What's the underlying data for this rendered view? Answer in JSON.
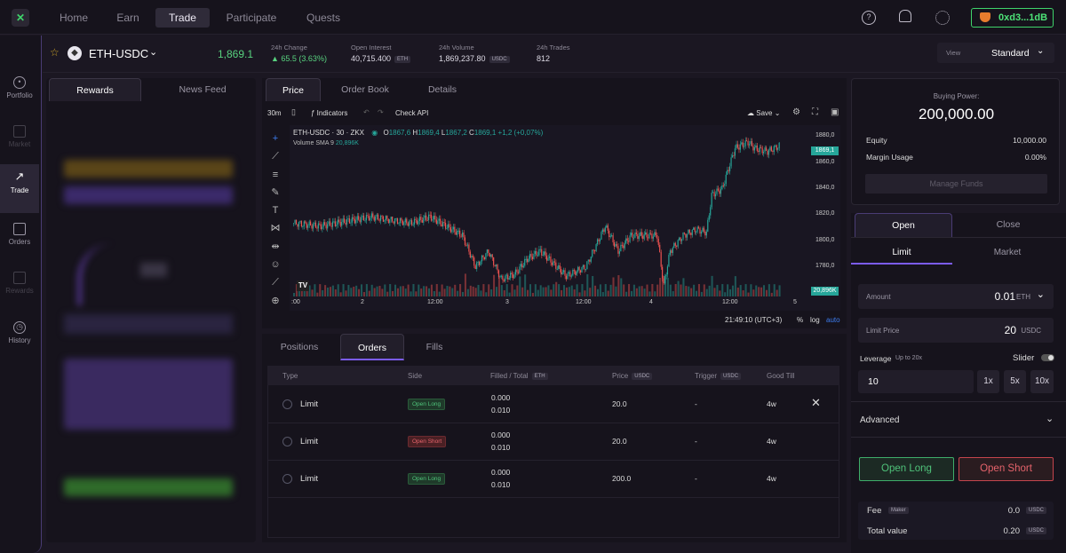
{
  "nav": {
    "logo": "✕",
    "items": [
      "Home",
      "Earn",
      "Trade",
      "Participate",
      "Quests"
    ],
    "active": "Trade",
    "wallet": "0xd3...1dB"
  },
  "sidebar": [
    {
      "label": "Portfolio",
      "icon": "person-icon"
    },
    {
      "label": "Market",
      "icon": "market-icon",
      "disabled": true
    },
    {
      "label": "Trade",
      "icon": "trend-icon",
      "active": true
    },
    {
      "label": "Orders",
      "icon": "orders-icon"
    },
    {
      "label": "Rewards",
      "icon": "gift-icon",
      "disabled": true
    },
    {
      "label": "History",
      "icon": "history-icon"
    }
  ],
  "market": {
    "pair": "ETH-USDC",
    "price": "1,869.1",
    "change_label": "24h Change",
    "change_value": "▲ 65.5 (3.63%)",
    "oi_label": "Open Interest",
    "oi_value": "40,715.400",
    "oi_unit": "ETH",
    "vol_label": "24h Volume",
    "vol_value": "1,869,237.80",
    "vol_unit": "USDC",
    "trades_label": "24h Trades",
    "trades_value": "812",
    "view_label": "View",
    "view_value": "Standard"
  },
  "left_tabs": [
    "Rewards",
    "News Feed"
  ],
  "center_tabs": [
    "Price",
    "Order Book",
    "Details"
  ],
  "chart_toolbar": {
    "interval": "30m",
    "indicators": "Indicators",
    "check_api": "Check API",
    "save": "Save"
  },
  "chart_legend": {
    "symbol": "ETH-USDC · 30 · ZKX",
    "o": "1867,6",
    "h": "1869,4",
    "l": "1867,2",
    "c": "1869,1",
    "chg": "+1,2 (+0,07%)",
    "volume": "Volume",
    "sma": "SMA 9",
    "vol_val": "20,896K"
  },
  "chart_data": {
    "type": "candlestick",
    "price_ticks": [
      "1880,0",
      "1860,0",
      "1840,0",
      "1820,0",
      "1800,0",
      "1780,0"
    ],
    "last_price": "1869,1",
    "last_volume": "20,896K",
    "time_ticks": [
      ":00",
      "2",
      "12:00",
      "3",
      "12:00",
      "4",
      "12:00",
      "5"
    ],
    "time": "21:49:10 (UTC+3)",
    "opts": [
      "%",
      "log",
      "auto"
    ],
    "ylim": [
      1772,
      1882
    ]
  },
  "bottom_tabs": [
    "Positions",
    "Orders",
    "Fills"
  ],
  "orders_header": {
    "type": "Type",
    "side": "Side",
    "filled": "Filled / Total",
    "filled_unit": "ETH",
    "price": "Price",
    "price_unit": "USDC",
    "trigger": "Trigger",
    "trigger_unit": "USDC",
    "good_till": "Good Till"
  },
  "orders": [
    {
      "type": "Limit",
      "side": "Open Long",
      "filled": "0.000",
      "total": "0.010",
      "price": "20.0",
      "trigger": "-",
      "good_till": "4w"
    },
    {
      "type": "Limit",
      "side": "Open Short",
      "filled": "0.000",
      "total": "0.010",
      "price": "20.0",
      "trigger": "-",
      "good_till": "4w"
    },
    {
      "type": "Limit",
      "side": "Open Long",
      "filled": "0.000",
      "total": "0.010",
      "price": "200.0",
      "trigger": "-",
      "good_till": "4w"
    }
  ],
  "account": {
    "bp_label": "Buying Power:",
    "bp_value": "200,000.00",
    "equity_label": "Equity",
    "equity_value": "10,000.00",
    "margin_label": "Margin Usage",
    "margin_value": "0.00%",
    "manage": "Manage Funds"
  },
  "order_form": {
    "tabs": [
      "Open",
      "Close"
    ],
    "types": [
      "Limit",
      "Market"
    ],
    "amount_label": "Amount",
    "amount_value": "0.01",
    "amount_unit": "ETH",
    "limit_label": "Limit Price",
    "limit_value": "20",
    "limit_unit": "USDC",
    "leverage_label": "Leverage",
    "leverage_hint": "Up to 20x",
    "slider": "Slider",
    "leverage_value": "10",
    "lev_btns": [
      "1x",
      "5x",
      "10x"
    ],
    "advanced": "Advanced",
    "open_long": "Open Long",
    "open_short": "Open Short",
    "fee_label": "Fee",
    "fee_tag": "Maker",
    "fee_value": "0.0",
    "fee_unit": "USDC",
    "total_label": "Total value",
    "total_value": "0.20",
    "total_unit": "USDC"
  },
  "colors": {
    "green": "#26a69a",
    "red": "#ef5350",
    "accent": "#7b5cf0",
    "wallet": "#3fd46b"
  }
}
